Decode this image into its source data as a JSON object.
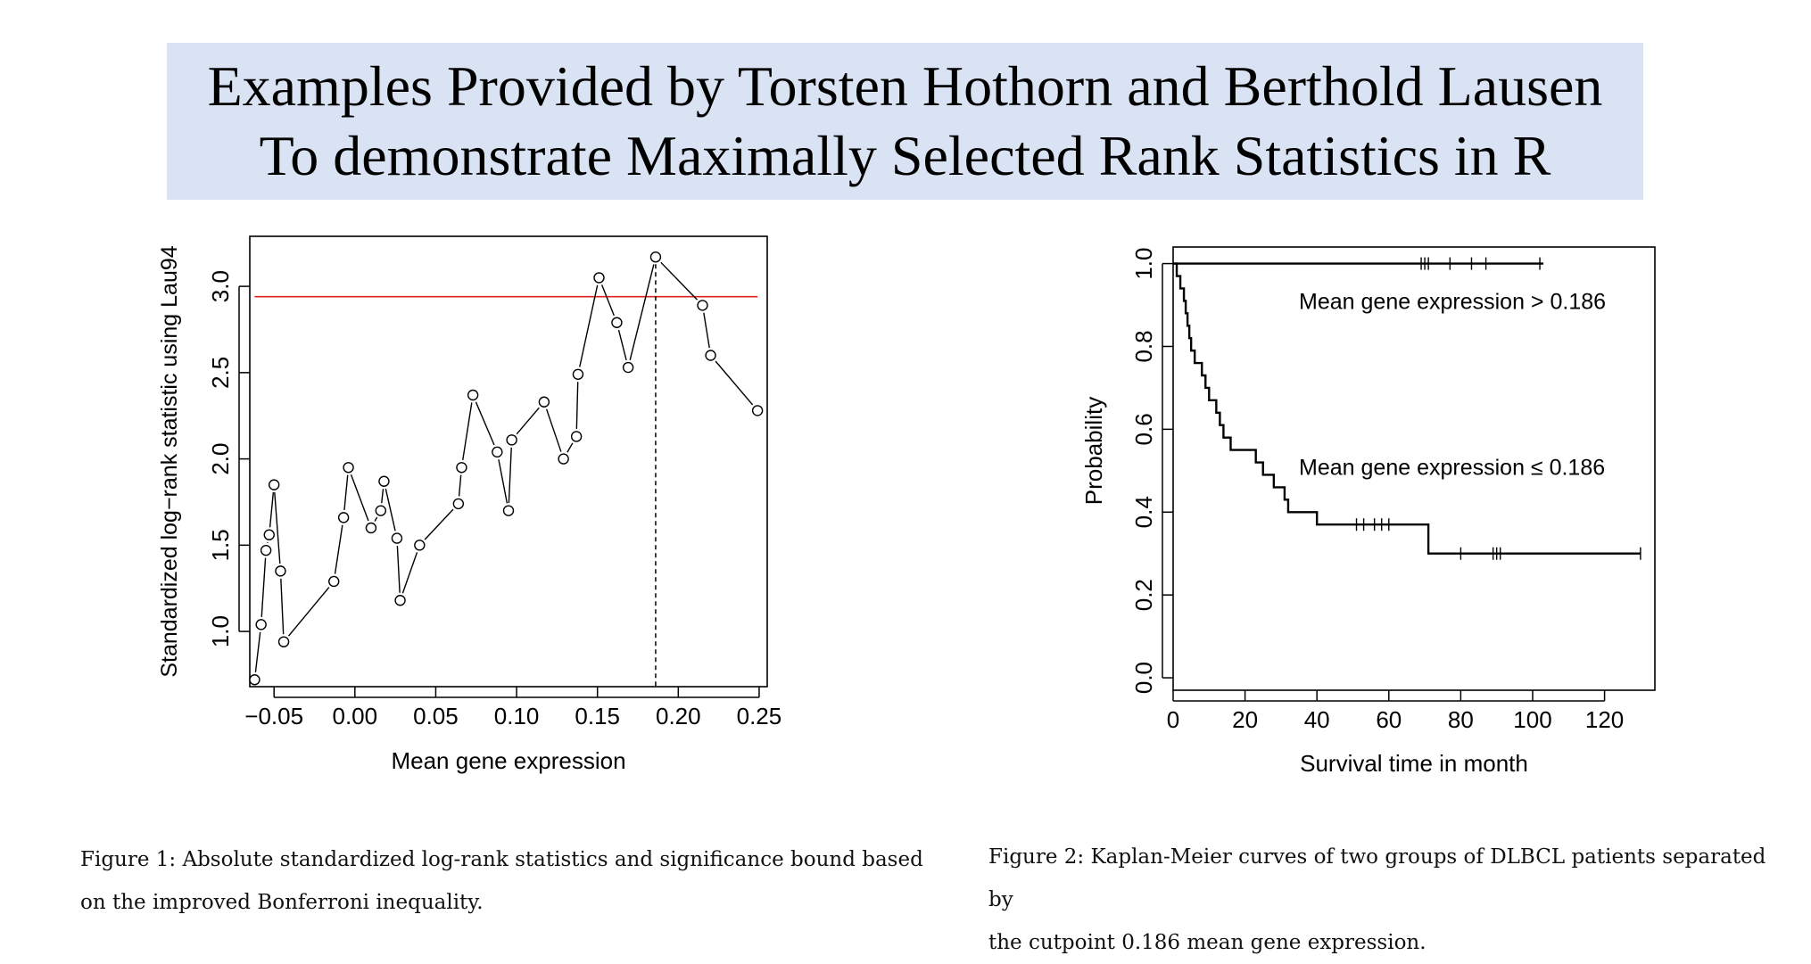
{
  "banner": {
    "line1": "Examples Provided by Torsten Hothorn and Berthold Lausen",
    "line2": "To demonstrate Maximally Selected Rank Statistics in R"
  },
  "colors": {
    "banner_bg": "#dae3f3",
    "bound_line": "#e0231e",
    "ink": "#000000"
  },
  "chart_data": [
    {
      "type": "line",
      "xlabel": "Mean gene expression",
      "ylabel": "Standardized log−rank statistic using Lau94",
      "xlim": [
        -0.065,
        0.255
      ],
      "ylim": [
        0.68,
        3.29
      ],
      "x_ticks": [
        -0.05,
        0.0,
        0.05,
        0.1,
        0.15,
        0.2,
        0.25
      ],
      "x_tick_labels": [
        "−0.05",
        "0.00",
        "0.05",
        "0.10",
        "0.15",
        "0.20",
        "0.25"
      ],
      "y_ticks": [
        1.0,
        1.5,
        2.0,
        2.5,
        3.0
      ],
      "y_tick_labels": [
        "1.0",
        "1.5",
        "2.0",
        "2.5",
        "3.0"
      ],
      "grid": false,
      "series": [
        {
          "markers": "open-circle",
          "points": [
            [
              -0.062,
              0.72
            ],
            [
              -0.058,
              1.04
            ],
            [
              -0.055,
              1.47
            ],
            [
              -0.053,
              1.56
            ],
            [
              -0.05,
              1.85
            ],
            [
              -0.046,
              1.35
            ],
            [
              -0.044,
              0.94
            ],
            [
              -0.013,
              1.29
            ],
            [
              -0.007,
              1.66
            ],
            [
              -0.004,
              1.95
            ],
            [
              0.01,
              1.6
            ],
            [
              0.016,
              1.7
            ],
            [
              0.018,
              1.87
            ],
            [
              0.026,
              1.54
            ],
            [
              0.028,
              1.18
            ],
            [
              0.04,
              1.5
            ],
            [
              0.064,
              1.74
            ],
            [
              0.066,
              1.95
            ],
            [
              0.073,
              2.37
            ],
            [
              0.088,
              2.04
            ],
            [
              0.095,
              1.7
            ],
            [
              0.097,
              2.11
            ],
            [
              0.117,
              2.33
            ],
            [
              0.129,
              2.0
            ],
            [
              0.137,
              2.13
            ],
            [
              0.138,
              2.49
            ],
            [
              0.151,
              3.05
            ],
            [
              0.162,
              2.79
            ],
            [
              0.169,
              2.53
            ],
            [
              0.186,
              3.17
            ],
            [
              0.215,
              2.89
            ],
            [
              0.22,
              2.6
            ],
            [
              0.249,
              2.28
            ]
          ]
        }
      ],
      "significance_bound": 2.94,
      "cutpoint": 0.186
    },
    {
      "type": "line",
      "subtype": "step",
      "xlabel": "Survival time in month",
      "ylabel": "Probability",
      "xlim": [
        0,
        134
      ],
      "ylim": [
        -0.03,
        1.04
      ],
      "x_ticks": [
        0,
        20,
        40,
        60,
        80,
        100,
        120
      ],
      "x_tick_labels": [
        "0",
        "20",
        "40",
        "60",
        "80",
        "100",
        "120"
      ],
      "y_ticks": [
        0.0,
        0.2,
        0.4,
        0.6,
        0.8,
        1.0
      ],
      "y_tick_labels": [
        "0.0",
        "0.2",
        "0.4",
        "0.6",
        "0.8",
        "1.0"
      ],
      "grid": false,
      "annotations": {
        "upper_label": "Mean gene expression > 0.186",
        "lower_label": "Mean gene expression ≤ 0.186"
      },
      "series": [
        {
          "name": "Mean gene expression > 0.186",
          "steps": [
            [
              0,
              1.0
            ],
            [
              103,
              1.0
            ]
          ],
          "censored": [
            69,
            70,
            71,
            77,
            83,
            87,
            102
          ]
        },
        {
          "name": "Mean gene expression ≤ 0.186",
          "steps": [
            [
              0,
              1.0
            ],
            [
              1,
              0.97
            ],
            [
              2,
              0.94
            ],
            [
              3,
              0.91
            ],
            [
              3.5,
              0.88
            ],
            [
              4,
              0.85
            ],
            [
              4.5,
              0.82
            ],
            [
              5,
              0.79
            ],
            [
              6,
              0.76
            ],
            [
              8,
              0.73
            ],
            [
              9,
              0.7
            ],
            [
              10,
              0.67
            ],
            [
              12,
              0.64
            ],
            [
              13,
              0.61
            ],
            [
              14,
              0.58
            ],
            [
              16,
              0.55
            ],
            [
              23,
              0.52
            ],
            [
              25,
              0.49
            ],
            [
              28,
              0.46
            ],
            [
              31,
              0.43
            ],
            [
              32,
              0.4
            ],
            [
              40,
              0.37
            ],
            [
              71,
              0.3
            ],
            [
              130,
              0.3
            ]
          ],
          "censored_at_037": [
            51,
            53,
            56,
            58,
            60
          ],
          "censored_at_030": [
            80,
            89,
            90,
            91,
            130
          ]
        }
      ]
    }
  ],
  "captions": {
    "fig1_line1": "Figure 1:  Absolute standardized log-rank statistics and significance bound based",
    "fig1_line2": "on the improved Bonferroni inequality.",
    "fig2_line1": "Figure 2:  Kaplan-Meier curves of two groups of DLBCL patients separated by",
    "fig2_line2": "the cutpoint 0.186 mean gene expression."
  }
}
